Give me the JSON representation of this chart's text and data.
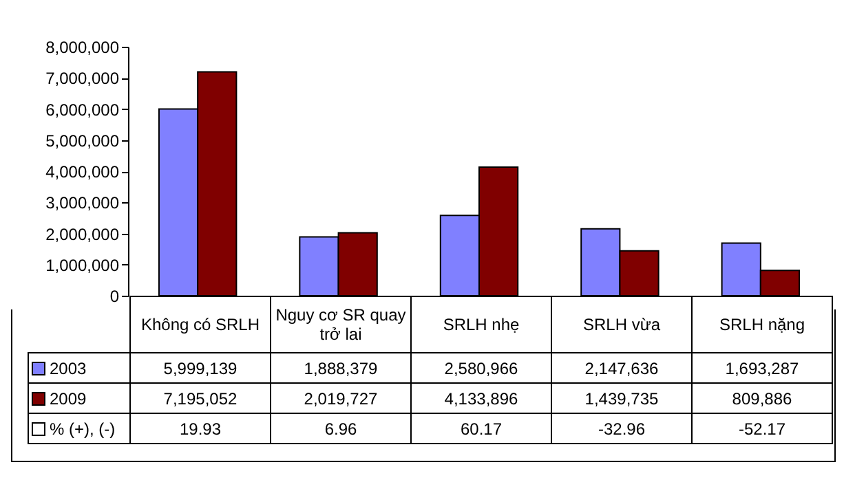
{
  "chart_data": {
    "type": "bar",
    "categories": [
      "Không có SRLH",
      "Nguy cơ SR quay trở lai",
      "SRLH nhẹ",
      "SRLH vừa",
      "SRLH nặng"
    ],
    "series": [
      {
        "name": "2003",
        "color": "#8080ff",
        "values": [
          5999139,
          1888379,
          2580966,
          2147636,
          1693287
        ],
        "value_labels": [
          "5,999,139",
          "1,888,379",
          "2,580,966",
          "2,147,636",
          "1,693,287"
        ]
      },
      {
        "name": "2009",
        "color": "#800000",
        "values": [
          7195052,
          2019727,
          4133896,
          1439735,
          809886
        ],
        "value_labels": [
          "7,195,052",
          "2,019,727",
          "4,133,896",
          "1,439,735",
          "809,886"
        ]
      }
    ],
    "ylim": [
      0,
      8000000
    ],
    "yticks": [
      0,
      {
        "value": 1000000,
        "label": "1,000,000"
      },
      {
        "value": 2000000,
        "label": "2,000,000"
      },
      {
        "value": 3000000,
        "label": "3,000,000"
      },
      {
        "value": 4000000,
        "label": "4,000,000"
      },
      {
        "value": 5000000,
        "label": "5,000,000"
      },
      {
        "value": 6000000,
        "label": "6,000,000"
      },
      {
        "value": 7000000,
        "label": "7,000,000"
      },
      {
        "value": 8000000,
        "label": "8,000,000"
      }
    ],
    "legend": "bottom left",
    "annotations": [
      "% (+), (-)",
      "19.93",
      "6.96",
      "60.17",
      "-32.96",
      "-52.17"
    ]
  }
}
